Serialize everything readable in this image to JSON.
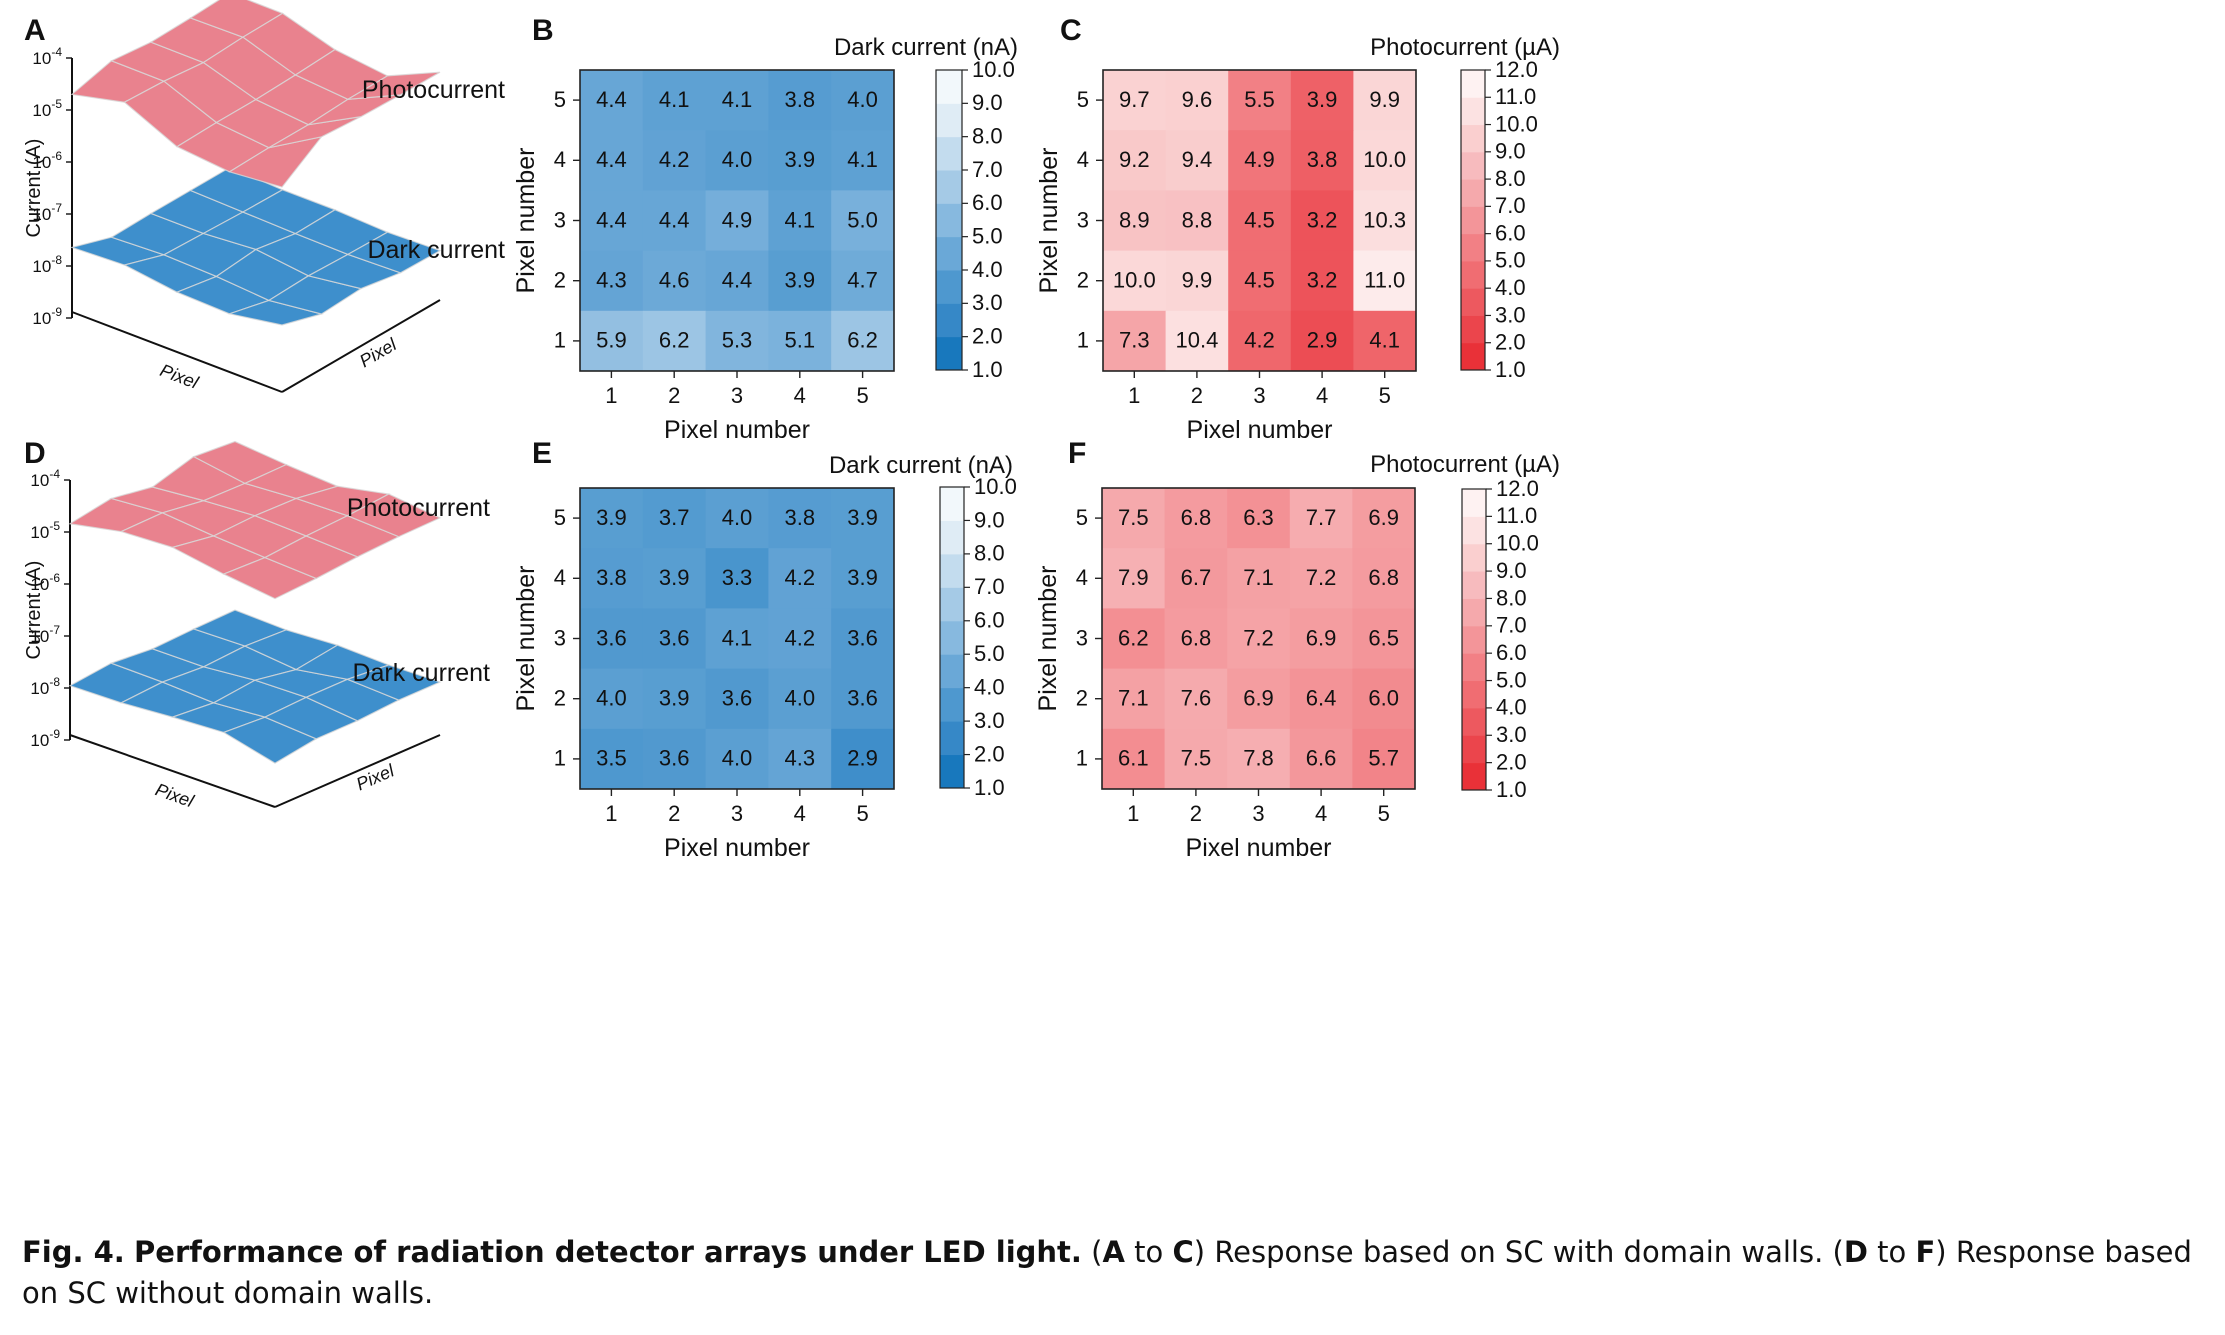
{
  "caption": {
    "label": "Fig. 4.",
    "title": "Performance of radiation detector arrays under LED light.",
    "segments": [
      {
        "t": " (",
        "b": false
      },
      {
        "t": "A",
        "b": true
      },
      {
        "t": " to ",
        "b": false
      },
      {
        "t": "C",
        "b": true
      },
      {
        "t": ") Response based on SC with domain walls. (",
        "b": false
      },
      {
        "t": "D",
        "b": true
      },
      {
        "t": " to ",
        "b": false
      },
      {
        "t": "F",
        "b": true
      },
      {
        "t": ") Response based on SC without domain walls.",
        "b": false
      }
    ]
  },
  "colors": {
    "photo_surface": "#e9828e",
    "dark_surface": "#3e8fcc",
    "blue_scale": [
      "#0570b8",
      "#2a80c2",
      "#4190cb",
      "#5b9fd2",
      "#78b0db",
      "#96c1e2",
      "#b4d3ea",
      "#d1e4f1",
      "#edf4f9",
      "#f7fbfd"
    ],
    "red_scale": [
      "#e8262e",
      "#ea3a41",
      "#ec4c53",
      "#ee5e64",
      "#f07075",
      "#f28287",
      "#f39599",
      "#f5a7aa",
      "#f7b8bb",
      "#f9caca",
      "#fbdbdb",
      "#fdeded",
      "#fff8f8"
    ]
  },
  "chart_data": [
    {
      "panel": "A",
      "type": "surface3d",
      "ylabel": "Current (A)",
      "xlabel": "Pixel",
      "zlabel": "Pixel",
      "yticks": [
        {
          "base": "10",
          "exp": "-9"
        },
        {
          "base": "10",
          "exp": "-8"
        },
        {
          "base": "10",
          "exp": "-7"
        },
        {
          "base": "10",
          "exp": "-6"
        },
        {
          "base": "10",
          "exp": "-5"
        },
        {
          "base": "10",
          "exp": "-4"
        }
      ],
      "series": [
        {
          "name": "Photocurrent",
          "unit": "uA",
          "source_panel": "C"
        },
        {
          "name": "Dark current",
          "unit": "nA",
          "source_panel": "B"
        }
      ]
    },
    {
      "panel": "B",
      "type": "heatmap",
      "colorbar_label": "Dark current (nA)",
      "scale": "blue",
      "xlabel": "Pixel number",
      "ylabel": "Pixel number",
      "x": [
        1,
        2,
        3,
        4,
        5
      ],
      "y": [
        1,
        2,
        3,
        4,
        5
      ],
      "rows_top_to_bottom": [
        {
          "y": 5,
          "values": [
            "4.4",
            "4.1",
            "4.1",
            "3.8",
            "4.0"
          ]
        },
        {
          "y": 4,
          "values": [
            "4.4",
            "4.2",
            "4.0",
            "3.9",
            "4.1"
          ]
        },
        {
          "y": 3,
          "values": [
            "4.4",
            "4.4",
            "4.9",
            "4.1",
            "5.0"
          ]
        },
        {
          "y": 2,
          "values": [
            "4.3",
            "4.6",
            "4.4",
            "3.9",
            "4.7"
          ]
        },
        {
          "y": 1,
          "values": [
            "5.9",
            "6.2",
            "5.3",
            "5.1",
            "6.2"
          ]
        }
      ],
      "colorbar_range": [
        1,
        10
      ],
      "colorbar_ticks": [
        "1.0",
        "2.0",
        "3.0",
        "4.0",
        "5.0",
        "6.0",
        "7.0",
        "8.0",
        "9.0",
        "10.0"
      ]
    },
    {
      "panel": "C",
      "type": "heatmap",
      "colorbar_label": "Photocurrent (µA)",
      "scale": "red",
      "xlabel": "Pixel number",
      "ylabel": "Pixel number",
      "x": [
        1,
        2,
        3,
        4,
        5
      ],
      "y": [
        1,
        2,
        3,
        4,
        5
      ],
      "rows_top_to_bottom": [
        {
          "y": 5,
          "values": [
            "9.7",
            "9.6",
            "5.5",
            "3.9",
            "9.9"
          ]
        },
        {
          "y": 4,
          "values": [
            "9.2",
            "9.4",
            "4.9",
            "3.8",
            "10.0"
          ]
        },
        {
          "y": 3,
          "values": [
            "8.9",
            "8.8",
            "4.5",
            "3.2",
            "10.3"
          ]
        },
        {
          "y": 2,
          "values": [
            "10.0",
            "9.9",
            "4.5",
            "3.2",
            "11.0"
          ]
        },
        {
          "y": 1,
          "values": [
            "7.3",
            "10.4",
            "4.2",
            "2.9",
            "4.1"
          ]
        }
      ],
      "colorbar_range": [
        1,
        12
      ],
      "colorbar_ticks": [
        "1.0",
        "2.0",
        "3.0",
        "4.0",
        "5.0",
        "6.0",
        "7.0",
        "8.0",
        "9.0",
        "10.0",
        "11.0",
        "12.0"
      ]
    },
    {
      "panel": "D",
      "type": "surface3d",
      "ylabel": "Current (A)",
      "xlabel": "Pixel",
      "zlabel": "Pixel",
      "yticks": [
        {
          "base": "10",
          "exp": "-9"
        },
        {
          "base": "10",
          "exp": "-8"
        },
        {
          "base": "10",
          "exp": "-7"
        },
        {
          "base": "10",
          "exp": "-6"
        },
        {
          "base": "10",
          "exp": "-5"
        },
        {
          "base": "10",
          "exp": "-4"
        }
      ],
      "series": [
        {
          "name": "Photocurrent",
          "unit": "uA",
          "source_panel": "F"
        },
        {
          "name": "Dark current",
          "unit": "nA",
          "source_panel": "E"
        }
      ]
    },
    {
      "panel": "E",
      "type": "heatmap",
      "colorbar_label": "Dark current (nA)",
      "scale": "blue",
      "xlabel": "Pixel number",
      "ylabel": "Pixel number",
      "x": [
        1,
        2,
        3,
        4,
        5
      ],
      "y": [
        1,
        2,
        3,
        4,
        5
      ],
      "rows_top_to_bottom": [
        {
          "y": 5,
          "values": [
            "3.9",
            "3.7",
            "4.0",
            "3.8",
            "3.9"
          ]
        },
        {
          "y": 4,
          "values": [
            "3.8",
            "3.9",
            "3.3",
            "4.2",
            "3.9"
          ]
        },
        {
          "y": 3,
          "values": [
            "3.6",
            "3.6",
            "4.1",
            "4.2",
            "3.6"
          ]
        },
        {
          "y": 2,
          "values": [
            "4.0",
            "3.9",
            "3.6",
            "4.0",
            "3.6"
          ]
        },
        {
          "y": 1,
          "values": [
            "3.5",
            "3.6",
            "4.0",
            "4.3",
            "2.9"
          ]
        }
      ],
      "colorbar_range": [
        1,
        10
      ],
      "colorbar_ticks": [
        "1.0",
        "2.0",
        "3.0",
        "4.0",
        "5.0",
        "6.0",
        "7.0",
        "8.0",
        "9.0",
        "10.0"
      ]
    },
    {
      "panel": "F",
      "type": "heatmap",
      "colorbar_label": "Photocurrent (µA)",
      "scale": "red",
      "xlabel": "Pixel number",
      "ylabel": "Pixel number",
      "x": [
        1,
        2,
        3,
        4,
        5
      ],
      "y": [
        1,
        2,
        3,
        4,
        5
      ],
      "rows_top_to_bottom": [
        {
          "y": 5,
          "values": [
            "7.5",
            "6.8",
            "6.3",
            "7.7",
            "6.9"
          ]
        },
        {
          "y": 4,
          "values": [
            "7.9",
            "6.7",
            "7.1",
            "7.2",
            "6.8"
          ]
        },
        {
          "y": 3,
          "values": [
            "6.2",
            "6.8",
            "7.2",
            "6.9",
            "6.5"
          ]
        },
        {
          "y": 2,
          "values": [
            "7.1",
            "7.6",
            "6.9",
            "6.4",
            "6.0"
          ]
        },
        {
          "y": 1,
          "values": [
            "6.1",
            "7.5",
            "7.8",
            "6.6",
            "5.7"
          ]
        }
      ],
      "colorbar_range": [
        1,
        12
      ],
      "colorbar_ticks": [
        "1.0",
        "2.0",
        "3.0",
        "4.0",
        "5.0",
        "6.0",
        "7.0",
        "8.0",
        "9.0",
        "10.0",
        "11.0",
        "12.0"
      ]
    }
  ]
}
